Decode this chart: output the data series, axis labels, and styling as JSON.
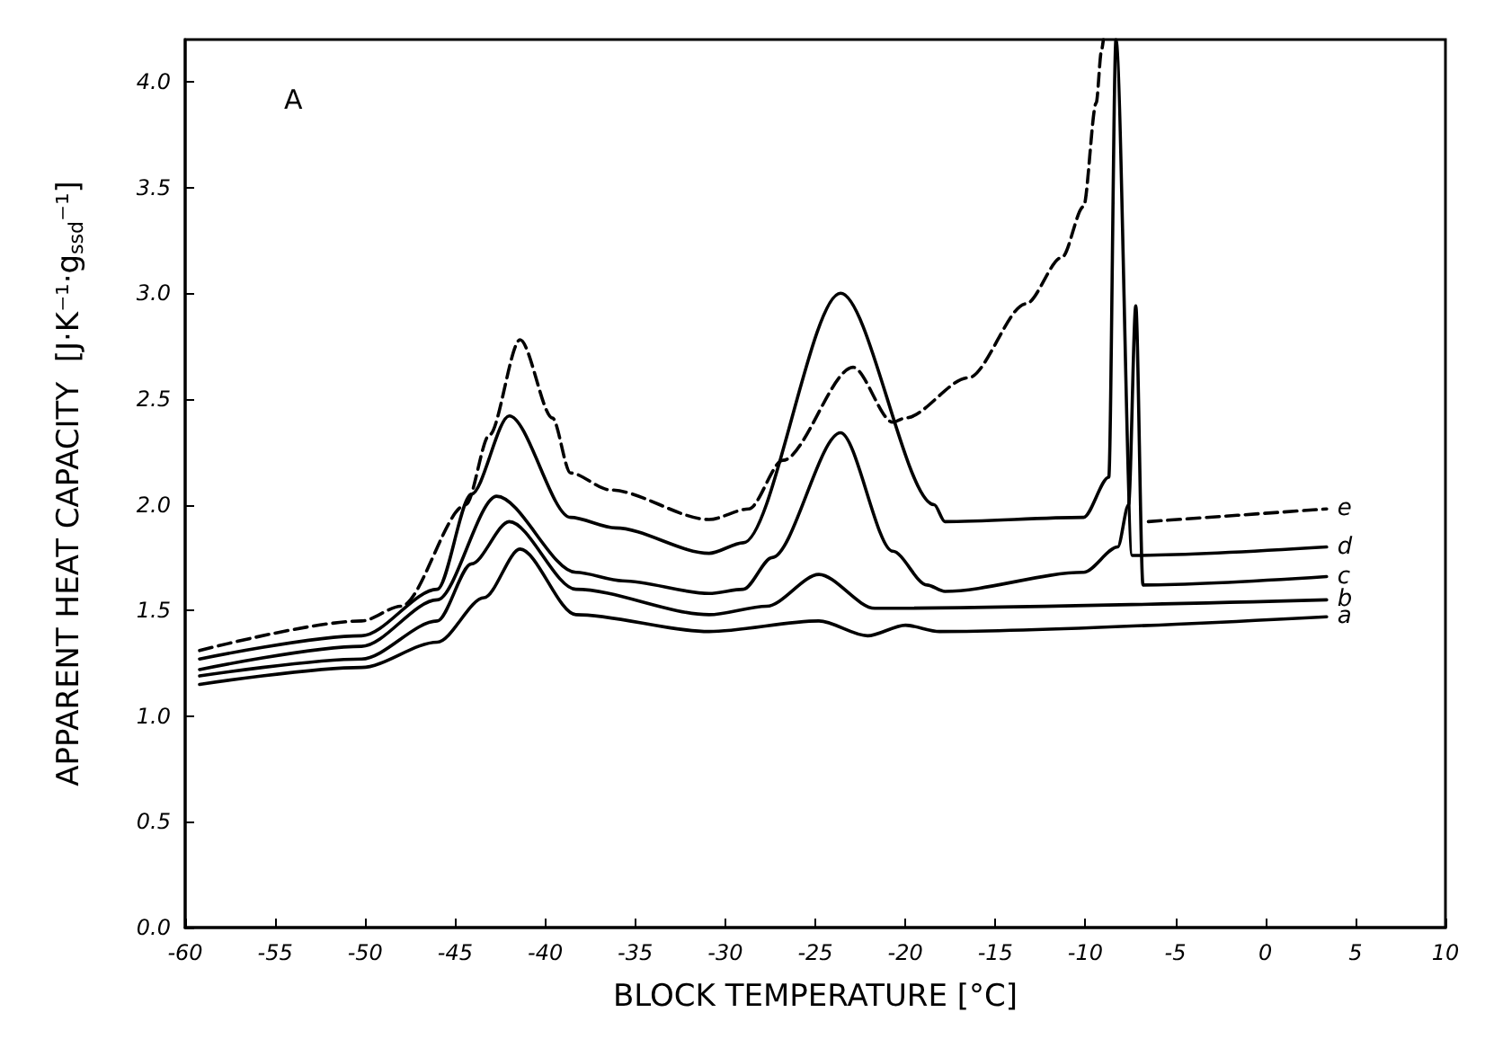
{
  "chart_data": {
    "type": "line",
    "xlabel": "BLOCK TEMPERATURE [°C]",
    "ylabel": "APPARENT HEAT CAPACITY  [J·K⁻¹·g$_{ssd}$⁻¹]",
    "annotations": [
      "A"
    ],
    "xlim": [
      -60,
      10
    ],
    "xticks": [
      -60,
      -55,
      -50,
      -45,
      -40,
      -35,
      -30,
      -25,
      -20,
      -15,
      -10,
      -5,
      0,
      5,
      10
    ],
    "ylim": [
      0,
      4.2
    ],
    "yticks": [
      {
        "value": 0,
        "label": "0.0"
      },
      {
        "value": 0.5,
        "label": "0.5"
      },
      {
        "value": 1,
        "label": "1.0"
      },
      {
        "value": 1.5,
        "label": "1.5"
      },
      {
        "value": 2,
        "label": "2.0"
      },
      {
        "value": 2.5,
        "label": "2.5"
      },
      {
        "value": 3,
        "label": "3.0"
      },
      {
        "value": 3.5,
        "label": "3.5"
      },
      {
        "value": 4,
        "label": "4.0"
      }
    ],
    "grid": false,
    "legend": false,
    "marker": "none",
    "series": [
      {
        "name": "a",
        "color": "#000000",
        "line_style": "solid",
        "x": [
          -59.2,
          -50.2,
          -46,
          -43.4,
          -41.4,
          -38.3,
          -30.9,
          -24.8,
          -22.1,
          -20,
          -18.1,
          3.4
        ],
        "values": [
          1.15,
          1.23,
          1.35,
          1.56,
          1.79,
          1.48,
          1.4,
          1.45,
          1.38,
          1.43,
          1.4,
          1.47
        ]
      },
      {
        "name": "b",
        "color": "#000000",
        "line_style": "solid",
        "x": [
          -59.2,
          -50.2,
          -46,
          -44.1,
          -42,
          -38.3,
          -30.9,
          -27.7,
          -24.8,
          -21.7,
          3.4
        ],
        "values": [
          1.19,
          1.27,
          1.45,
          1.72,
          1.92,
          1.6,
          1.48,
          1.52,
          1.67,
          1.51,
          1.55
        ]
      },
      {
        "name": "c",
        "color": "#000000",
        "line_style": "solid",
        "x": [
          -59.2,
          -50.2,
          -46,
          -42.7,
          -38.3,
          -35.7,
          -30.9,
          -29,
          -27.4,
          -23.6,
          -20.7,
          -18.8,
          -17.8,
          -10.1,
          -8.2,
          -7.6,
          -7.2,
          -6.8,
          3.4
        ],
        "values": [
          1.22,
          1.33,
          1.55,
          2.04,
          1.68,
          1.64,
          1.58,
          1.6,
          1.75,
          2.34,
          1.78,
          1.62,
          1.59,
          1.68,
          1.8,
          2.0,
          2.94,
          1.62,
          1.66
        ]
      },
      {
        "name": "d",
        "color": "#000000",
        "line_style": "solid",
        "x": [
          -59.2,
          -50.2,
          -46,
          -44.1,
          -42,
          -38.6,
          -36.1,
          -30.9,
          -29,
          -23.6,
          -18.4,
          -17.8,
          -10.1,
          -8.7,
          -8.3,
          -7.4,
          3.4
        ],
        "values": [
          1.27,
          1.38,
          1.6,
          2.05,
          2.42,
          1.94,
          1.89,
          1.77,
          1.82,
          3.0,
          2.0,
          1.92,
          1.94,
          2.13,
          4.2,
          1.76,
          1.8
        ]
      },
      {
        "name": "e",
        "color": "#000000",
        "line_style": "dashed",
        "x": [
          -59.2,
          -50.2,
          -48,
          -44.4,
          -43.1,
          -41.4,
          -39.6,
          -38.6,
          -36.4,
          -30.9,
          -28.7,
          -26.8,
          -22.9,
          -20.7,
          -20,
          -16.5,
          -13.3,
          -11.3,
          -10.1,
          -9.4,
          -9.1,
          -9.0,
          -7.5,
          -6.5,
          3.4
        ],
        "values": [
          1.31,
          1.45,
          1.52,
          2.0,
          2.33,
          2.78,
          2.41,
          2.15,
          2.07,
          1.93,
          1.98,
          2.21,
          2.65,
          2.39,
          2.41,
          2.6,
          2.95,
          3.17,
          3.41,
          3.9,
          4.15,
          4.2,
          null,
          1.92,
          1.98
        ]
      }
    ]
  }
}
